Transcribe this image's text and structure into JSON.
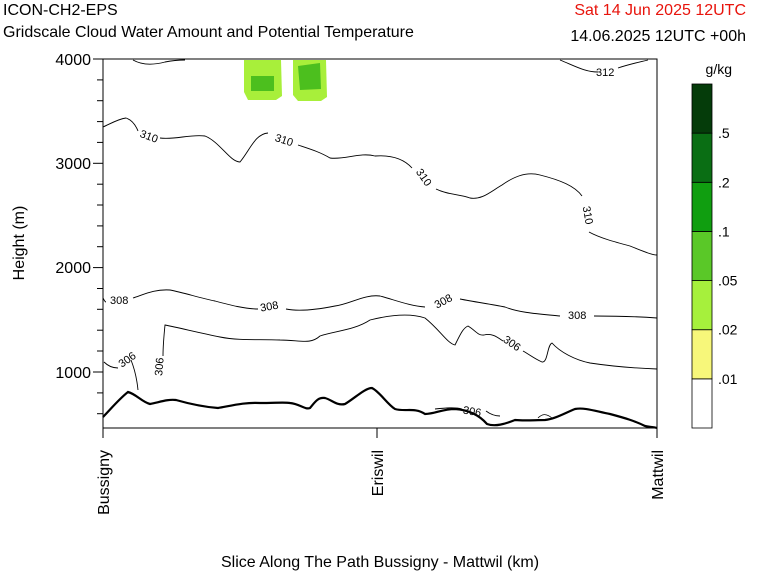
{
  "header": {
    "model": "ICON-CH2-EPS",
    "product": "Gridscale Cloud Water Amount and Potential Temperature",
    "date_red": "Sat 14 Jun 2025 12UTC",
    "valid": "14.06.2025 12UTC +00h"
  },
  "colors": {
    "date_red": "#e8140c",
    "green_light": "#8ff23c",
    "green_mid": "#4cc81e"
  },
  "chart_data": {
    "type": "contour",
    "ylabel": "Height (m)",
    "xlabel": "Slice Along The Path Bussigny - Mattwil (km)",
    "ylim": [
      470,
      4000
    ],
    "yticks": [
      1000,
      2000,
      3000,
      4000
    ],
    "xticks": [
      "Bussigny",
      "Eriswil",
      "Mattwil"
    ],
    "contour_labels": [
      {
        "text": "312",
        "level": 312
      },
      {
        "text": "310",
        "level": 310
      },
      {
        "text": "310",
        "level": 310
      },
      {
        "text": "310",
        "level": 310
      },
      {
        "text": "310",
        "level": 310
      },
      {
        "text": "308",
        "level": 308
      },
      {
        "text": "308",
        "level": 308
      },
      {
        "text": "308",
        "level": 308
      },
      {
        "text": "308",
        "level": 308
      },
      {
        "text": "306",
        "level": 306
      },
      {
        "text": "306",
        "level": 306
      },
      {
        "text": "306",
        "level": 306
      },
      {
        "text": "306",
        "level": 306
      }
    ],
    "colorbar": {
      "unit": "g/kg",
      "labels": [
        ".01",
        ".02",
        ".05",
        ".1",
        ".2",
        ".5"
      ],
      "colors": [
        "#ffffff",
        "#f7f77a",
        "#a6f03c",
        "#5ac828",
        "#109e10",
        "#0a6e14",
        "#053c0a"
      ]
    }
  }
}
